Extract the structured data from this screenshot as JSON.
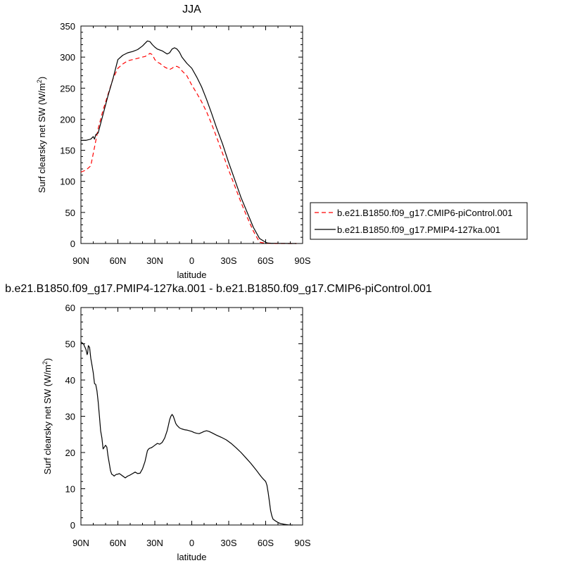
{
  "chart_data": [
    {
      "type": "line",
      "title": "JJA",
      "xlabel": "latitude",
      "ylabel": "Surf clearsky net SW (W/m",
      "ylabel_sup": "2",
      "ylabel_end": ")",
      "xlim": [
        90,
        -90
      ],
      "ylim": [
        0,
        350
      ],
      "xticks": [
        90,
        60,
        30,
        0,
        -30,
        -60,
        -90
      ],
      "xtick_labels": [
        "90N",
        "60N",
        "30N",
        "0",
        "30S",
        "60S",
        "90S"
      ],
      "yticks": [
        0,
        50,
        100,
        150,
        200,
        250,
        300,
        350
      ],
      "legend_position": "right",
      "series": [
        {
          "name": "b.e21.B1850.f09_g17.CMIP6-piControl.001",
          "color": "#ff0000",
          "dash": "dashed",
          "x": [
            90,
            86,
            82,
            79,
            76,
            72,
            68,
            64,
            60,
            56,
            52,
            48,
            44,
            40,
            38,
            36,
            34,
            32,
            30,
            28,
            26,
            22,
            18,
            16,
            14,
            12,
            10,
            8,
            4,
            0,
            -4,
            -8,
            -12,
            -16,
            -20,
            -25,
            -30,
            -35,
            -40,
            -45,
            -50,
            -55,
            -60,
            -62,
            -64,
            -66,
            -68,
            -70,
            -74,
            -78,
            -82,
            -85
          ],
          "y": [
            115,
            118,
            125,
            155,
            185,
            215,
            240,
            265,
            282,
            289,
            294,
            296,
            298,
            300,
            301,
            303,
            306,
            304,
            296,
            292,
            290,
            284,
            280,
            282,
            285,
            285,
            283,
            278,
            270,
            255,
            242,
            228,
            212,
            193,
            172,
            145,
            118,
            92,
            66,
            42,
            20,
            2,
            0.5,
            0.3,
            0.2,
            0.1,
            0,
            0,
            0,
            0,
            0,
            0
          ]
        },
        {
          "name": "b.e21.B1850.f09_g17.PMIP4-127ka.001",
          "color": "#000000",
          "dash": "solid",
          "x": [
            90,
            86,
            82,
            80,
            79,
            78,
            76,
            72,
            68,
            64,
            60,
            56,
            52,
            48,
            44,
            40,
            38,
            36,
            34,
            32,
            30,
            28,
            24,
            20,
            18,
            16,
            14,
            12,
            10,
            8,
            4,
            0,
            -4,
            -8,
            -12,
            -16,
            -20,
            -25,
            -30,
            -35,
            -40,
            -45,
            -50,
            -55,
            -60,
            -61,
            -62,
            -64,
            -66,
            -70,
            -75,
            -80,
            -85
          ],
          "y": [
            166,
            166,
            168,
            172,
            168,
            175,
            178,
            208,
            238,
            265,
            296,
            303,
            307,
            309,
            312,
            318,
            322,
            326,
            325,
            320,
            316,
            313,
            310,
            305,
            307,
            313,
            315,
            313,
            308,
            300,
            290,
            282,
            268,
            252,
            232,
            210,
            187,
            160,
            130,
            102,
            74,
            50,
            26,
            8,
            2,
            1,
            0.8,
            0.5,
            0.3,
            0.2,
            0.1,
            0,
            0
          ]
        }
      ]
    },
    {
      "type": "line",
      "title": "b.e21.B1850.f09_g17.PMIP4-127ka.001 - b.e21.B1850.f09_g17.CMIP6-piControl.001",
      "xlabel": "latitude",
      "ylabel": "Surf clearsky net SW (W/m",
      "ylabel_sup": "2",
      "ylabel_end": ")",
      "xlim": [
        90,
        -90
      ],
      "ylim": [
        0,
        60
      ],
      "xticks": [
        90,
        60,
        30,
        0,
        -30,
        -60,
        -90
      ],
      "xtick_labels": [
        "90N",
        "60N",
        "30N",
        "0",
        "30S",
        "60S",
        "90S"
      ],
      "yticks": [
        0,
        10,
        20,
        30,
        40,
        50,
        60
      ],
      "series": [
        {
          "color": "#000000",
          "dash": "solid",
          "x": [
            90,
            88,
            86,
            85,
            84.5,
            84,
            83,
            82,
            81,
            80,
            79,
            78,
            77,
            76,
            75,
            74,
            73,
            72,
            71,
            70,
            69,
            68,
            67,
            66,
            65,
            64,
            63,
            62,
            61,
            60,
            59,
            58,
            56,
            54,
            52,
            50,
            48,
            46,
            44,
            42,
            40,
            38,
            36,
            35,
            34,
            33,
            32,
            30,
            28,
            26,
            24,
            22,
            20,
            19,
            18,
            17,
            16,
            15,
            14,
            13,
            12,
            10,
            8,
            6,
            4,
            2,
            0,
            -2,
            -4,
            -6,
            -8,
            -10,
            -12,
            -14,
            -16,
            -20,
            -24,
            -28,
            -32,
            -36,
            -40,
            -44,
            -48,
            -52,
            -56,
            -58,
            -60,
            -61,
            -62,
            -63,
            -64,
            -65,
            -66,
            -68,
            -70,
            -72,
            -75,
            -78,
            -80,
            -82
          ],
          "y": [
            50.5,
            50,
            48.5,
            47,
            47.5,
            49.5,
            49,
            46,
            44,
            42,
            39,
            38.8,
            37,
            34,
            30,
            26,
            24,
            21,
            21.5,
            22,
            21.5,
            19,
            17,
            15,
            14,
            13.8,
            13.5,
            13.8,
            14,
            14,
            14.2,
            14,
            13.5,
            13,
            13.5,
            13.8,
            14.2,
            14.6,
            14.2,
            14.3,
            15.5,
            17.5,
            20.5,
            21,
            21.2,
            21.3,
            21.5,
            22,
            22.5,
            22.3,
            22.8,
            24,
            26,
            27.5,
            29,
            30,
            30.5,
            30,
            29,
            28,
            27.5,
            26.8,
            26.5,
            26.3,
            26.2,
            26,
            25.8,
            25.5,
            25.3,
            25.2,
            25.5,
            25.8,
            26,
            25.8,
            25.5,
            24.8,
            24.2,
            23.5,
            22.5,
            21.3,
            20,
            18.5,
            17,
            15.3,
            13.5,
            12.7,
            12,
            11,
            9,
            6.5,
            4,
            2.5,
            1.6,
            1.1,
            0.7,
            0.4,
            0.2,
            0.05,
            0,
            0
          ]
        }
      ]
    }
  ]
}
